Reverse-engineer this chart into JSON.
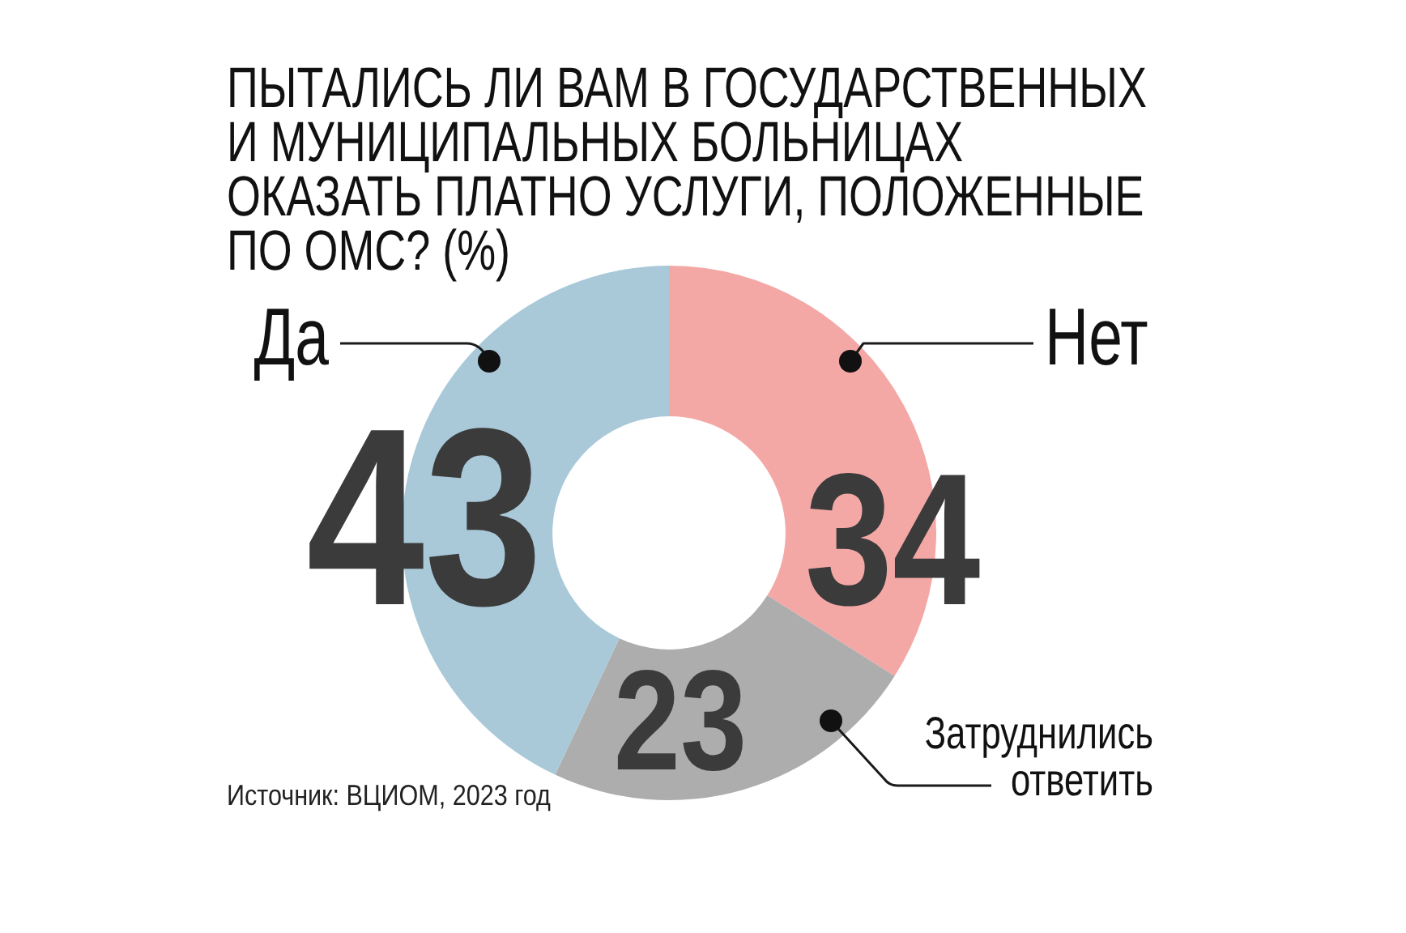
{
  "chart_data": {
    "type": "donut",
    "title": "ПЫТАЛИСЬ ЛИ ВАМ В ГОСУДАРСТВЕННЫХ И МУНИЦИПАЛЬНЫХ БОЛЬНИЦАХ ОКАЗАТЬ ПЛАТНО УСЛУГИ, ПОЛОЖЕННЫЕ ПО ОМС? (%)",
    "categories": [
      "Нет",
      "Затруднились ответить",
      "Да"
    ],
    "values": [
      34,
      23,
      43
    ],
    "colors": [
      "#f4a8a6",
      "#adadad",
      "#a9c9d9"
    ],
    "data_labels": true,
    "annotations": [
      "Источник: ВЦИОМ, 2023 год"
    ]
  }
}
